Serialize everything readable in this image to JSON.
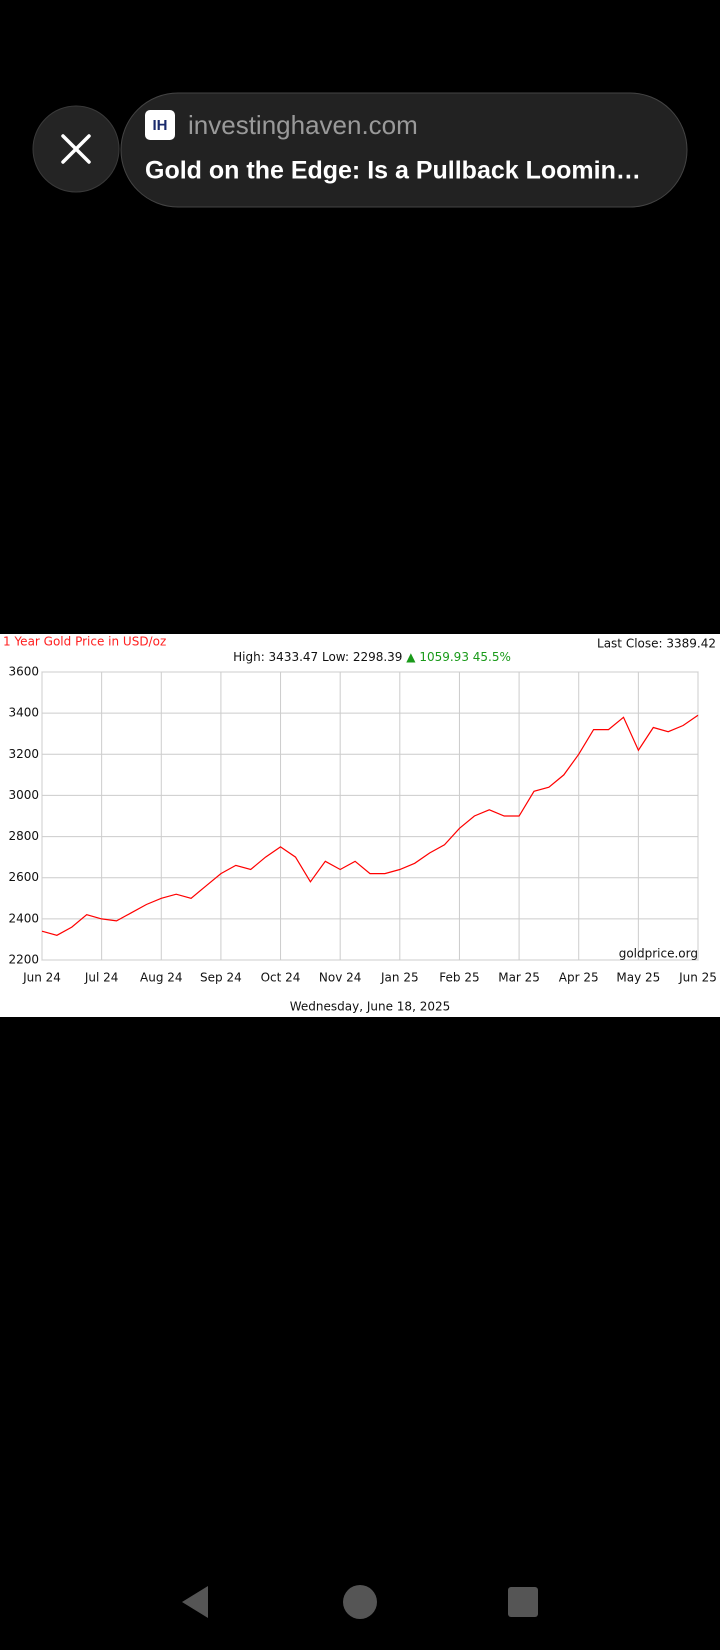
{
  "preview": {
    "favicon": "IH",
    "site": "investinghaven.com",
    "title": "Gold on the Edge: Is a Pullback Loomin…"
  },
  "chart_data": {
    "type": "line",
    "title": "1 Year Gold Price in USD/oz",
    "last_close": "Last Close: 3389.42",
    "stats": "High: 3433.47 Low: 2298.39",
    "change": "▲ 1059.93 45.5%",
    "source": "goldprice.org",
    "date": "Wednesday, June 18, 2025",
    "categories": [
      "Jun 24",
      null,
      null,
      null,
      "Jul 24",
      null,
      null,
      null,
      "Aug 24",
      null,
      null,
      null,
      "Sep 24",
      null,
      null,
      null,
      "Oct 24",
      null,
      null,
      null,
      "Nov 24",
      null,
      null,
      null,
      "Jan 25",
      null,
      null,
      null,
      "Feb 25",
      null,
      null,
      null,
      "Mar 25",
      null,
      null,
      null,
      "Apr 25",
      null,
      null,
      null,
      "May 25",
      null,
      null,
      null,
      "Jun 25"
    ],
    "series": [
      {
        "color": "#ff0000",
        "values": [
          2340,
          2320,
          2360,
          2420,
          2400,
          2390,
          2430,
          2470,
          2500,
          2520,
          2500,
          2560,
          2620,
          2660,
          2640,
          2700,
          2750,
          2700,
          2580,
          2680,
          2640,
          2680,
          2620,
          2620,
          2640,
          2670,
          2720,
          2760,
          2840,
          2900,
          2930,
          2900,
          2900,
          3020,
          3040,
          3100,
          3200,
          3320,
          3320,
          3380,
          3220,
          3330,
          3310,
          3340,
          3390
        ]
      }
    ],
    "ylim": [
      2200,
      3600
    ],
    "yticks": [
      2200,
      2400,
      2600,
      2800,
      3000,
      3200,
      3400,
      3600
    ],
    "grid": true
  }
}
